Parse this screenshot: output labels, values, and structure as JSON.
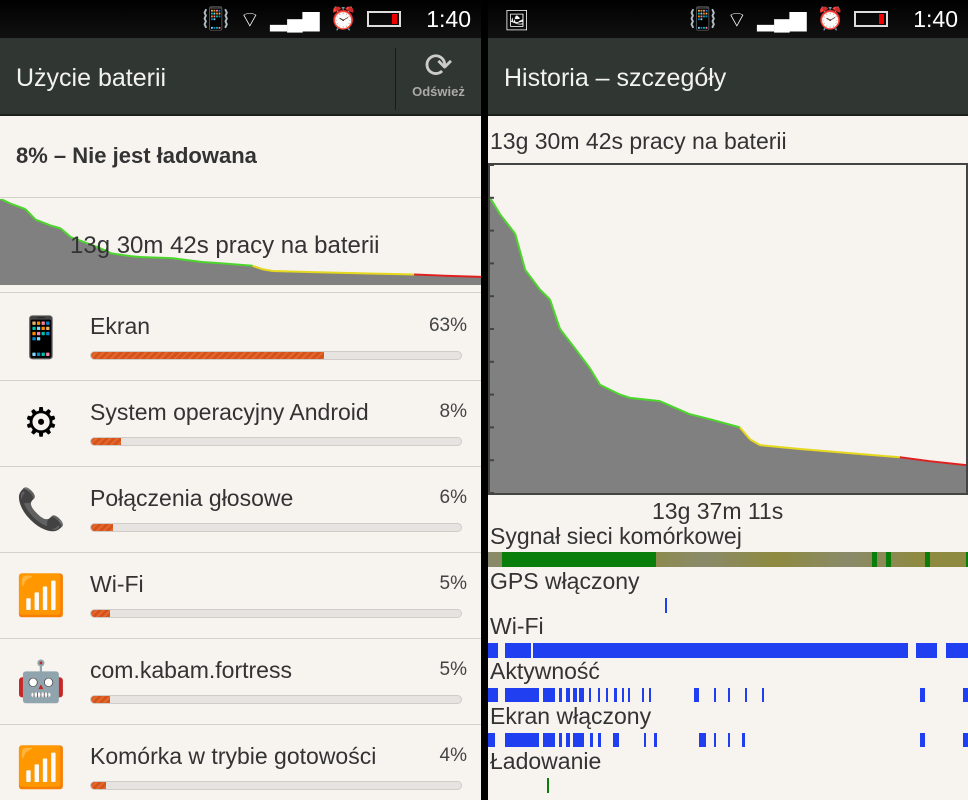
{
  "status_bar": {
    "time": "1:40",
    "icons": [
      "vibrate-icon",
      "wifi-icon",
      "signal-icon",
      "alarm-icon",
      "battery-low-icon"
    ]
  },
  "left": {
    "title": "Użycie baterii",
    "refresh_label": "Odśwież",
    "status": "8% – Nie jest ładowana",
    "graph_caption": "13g 30m 42s pracy na baterii",
    "items": [
      {
        "name": "Ekran",
        "percent": "63%",
        "value": 63,
        "icon": "phone-screen-icon"
      },
      {
        "name": "System operacyjny Android",
        "percent": "8%",
        "value": 8,
        "icon": "gears-icon"
      },
      {
        "name": "Połączenia głosowe",
        "percent": "6%",
        "value": 6,
        "icon": "phone-handset-icon"
      },
      {
        "name": "Wi-Fi",
        "percent": "5%",
        "value": 5,
        "icon": "wifi-icon"
      },
      {
        "name": "com.kabam.fortress",
        "percent": "5%",
        "value": 5,
        "icon": "android-app-icon"
      },
      {
        "name": "Komórka w trybie gotowości",
        "percent": "4%",
        "value": 4,
        "icon": "cell-signal-icon"
      }
    ]
  },
  "right": {
    "title": "Historia – szczegóły",
    "battery_caption": "13g 30m 42s pracy na baterii",
    "duration": "13g 37m 11s",
    "tracks": {
      "signal": "Sygnał sieci komórkowej",
      "gps": "GPS włączony",
      "wifi": "Wi-Fi",
      "activity": "Aktywność",
      "screen": "Ekran włączony",
      "charging": "Ładowanie"
    }
  },
  "chart_data": {
    "type": "area",
    "ylabel": "",
    "xlabel": "",
    "ylim": [
      0,
      100
    ],
    "time_fraction": [
      0,
      0.021,
      0.053,
      0.074,
      0.105,
      0.126,
      0.147,
      0.179,
      0.21,
      0.231,
      0.273,
      0.294,
      0.357,
      0.42,
      0.462,
      0.525,
      0.546,
      0.567,
      0.651,
      0.777,
      0.861,
      0.924,
      1
    ],
    "battery_level": [
      90,
      85,
      79,
      68,
      62,
      59,
      50,
      44,
      38,
      33,
      30,
      29,
      28,
      24,
      22.5,
      20,
      16.4,
      14.6,
      13.4,
      11.9,
      10.9,
      9.7,
      8.5
    ],
    "level_colors": {
      "high": "#4cd62c",
      "medium": "#e6d81c",
      "low": "#e02020"
    },
    "tracks": {
      "signal_good": [
        [
          0.03,
          0.35
        ],
        [
          0.8,
          0.81
        ],
        [
          0.83,
          0.84
        ],
        [
          0.91,
          0.92
        ],
        [
          0.995,
          1
        ]
      ],
      "gps": [
        [
          0.369,
          0.372
        ]
      ],
      "wifi": [
        [
          0,
          0.02
        ],
        [
          0.035,
          0.09
        ],
        [
          0.094,
          0.875
        ],
        [
          0.892,
          0.935
        ],
        [
          0.955,
          1
        ]
      ],
      "activity": [
        [
          0,
          0.02
        ],
        [
          0.035,
          0.107
        ],
        [
          0.115,
          0.14
        ],
        [
          0.147,
          0.155
        ],
        [
          0.162,
          0.17
        ],
        [
          0.178,
          0.185
        ],
        [
          0.19,
          0.2
        ],
        [
          0.21,
          0.215
        ],
        [
          0.23,
          0.233
        ],
        [
          0.245,
          0.248
        ],
        [
          0.262,
          0.268
        ],
        [
          0.28,
          0.283
        ],
        [
          0.292,
          0.295
        ],
        [
          0.32,
          0.325
        ],
        [
          0.335,
          0.34
        ],
        [
          0.43,
          0.44
        ],
        [
          0.47,
          0.473
        ],
        [
          0.5,
          0.503
        ],
        [
          0.535,
          0.538
        ],
        [
          0.57,
          0.573
        ],
        [
          0.9,
          0.91
        ],
        [
          0.99,
          1
        ]
      ],
      "screen": [
        [
          0,
          0.015
        ],
        [
          0.035,
          0.107
        ],
        [
          0.115,
          0.14
        ],
        [
          0.147,
          0.155
        ],
        [
          0.162,
          0.17
        ],
        [
          0.178,
          0.2
        ],
        [
          0.213,
          0.218
        ],
        [
          0.23,
          0.236
        ],
        [
          0.26,
          0.272
        ],
        [
          0.325,
          0.328
        ],
        [
          0.345,
          0.352
        ],
        [
          0.44,
          0.455
        ],
        [
          0.47,
          0.473
        ],
        [
          0.5,
          0.503
        ],
        [
          0.53,
          0.535
        ],
        [
          0.9,
          0.91
        ],
        [
          0.99,
          1
        ]
      ],
      "charging": [
        [
          0.123,
          0.128
        ]
      ]
    },
    "track_colors": {
      "signal_good": "#0a7e0a",
      "signal_base": "#8a8a6a",
      "on": "#1f3ff0",
      "charging": "#0a7e0a"
    }
  }
}
